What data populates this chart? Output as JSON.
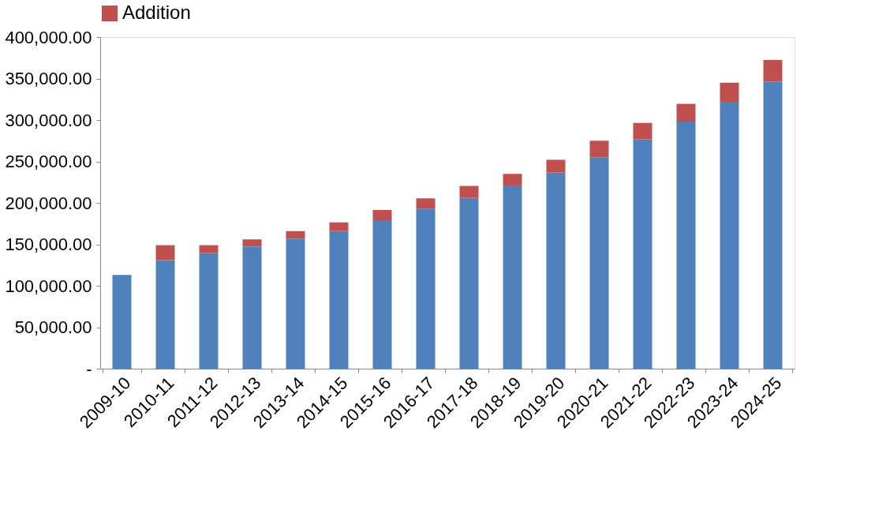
{
  "chart_data": {
    "type": "bar",
    "stacked": true,
    "categories": [
      "2009-10",
      "2010-11",
      "2011-12",
      "2012-13",
      "2013-14",
      "2014-15",
      "2015-16",
      "2016-17",
      "2017-18",
      "2018-19",
      "2019-20",
      "2020-21",
      "2021-22",
      "2022-23",
      "2023-24",
      "2024-25"
    ],
    "series": [
      {
        "color": "#4f81bd",
        "values": [
          113000,
          131000,
          139500,
          147500,
          157000,
          166000,
          179000,
          193000,
          206000,
          221000,
          236500,
          255000,
          276500,
          298000,
          321000,
          346500
        ]
      },
      {
        "name": "Addition",
        "color": "#c0504d",
        "values": [
          null,
          18000,
          9500,
          8500,
          9000,
          10500,
          12500,
          12500,
          14500,
          14000,
          15500,
          20000,
          20000,
          21500,
          24000,
          26000
        ]
      }
    ],
    "ylim": [
      0,
      400000
    ],
    "yticks": [
      {
        "value": 0,
        "label": "-"
      },
      {
        "value": 50000,
        "label": "50,000.00"
      },
      {
        "value": 100000,
        "label": "100,000.00"
      },
      {
        "value": 150000,
        "label": "150,000.00"
      },
      {
        "value": 200000,
        "label": "200,000.00"
      },
      {
        "value": 250000,
        "label": "250,000.00"
      },
      {
        "value": 300000,
        "label": "300,000.00"
      },
      {
        "value": 350000,
        "label": "350,000.00"
      },
      {
        "value": 400000,
        "label": "400,000.00"
      }
    ],
    "legend": "top",
    "grid": false
  }
}
